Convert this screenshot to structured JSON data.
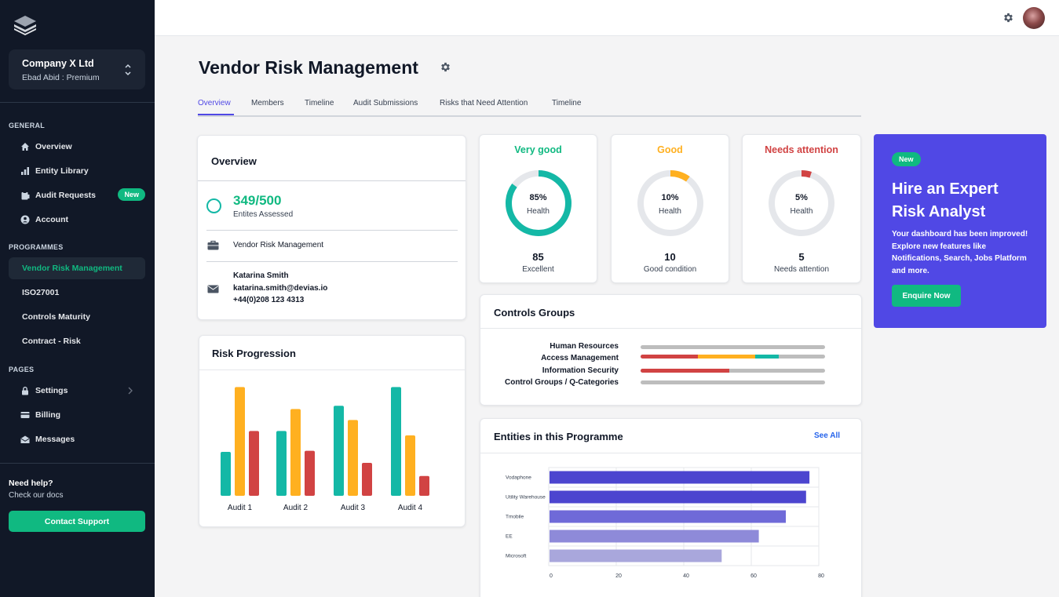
{
  "sidebar": {
    "company_name": "Company X Ltd",
    "company_sub": "Ebad Abid : Premium",
    "general_title": "GENERAL",
    "general_items": [
      {
        "label": "Overview",
        "icon": "home-icon"
      },
      {
        "label": "Entity Library",
        "icon": "bar-chart-icon"
      },
      {
        "label": "Audit Requests",
        "icon": "clipboard-icon",
        "badge": "New"
      },
      {
        "label": "Account",
        "icon": "user-circle-icon"
      }
    ],
    "programmes_title": "PROGRAMMES",
    "programmes_items": [
      {
        "label": "Vendor Risk Management",
        "active": true
      },
      {
        "label": "ISO27001"
      },
      {
        "label": "Controls Maturity"
      },
      {
        "label": "Contract - Risk"
      }
    ],
    "pages_title": "PAGES",
    "pages_items": [
      {
        "label": "Settings",
        "icon": "lock-icon"
      },
      {
        "label": "Billing",
        "icon": "credit-card-icon"
      },
      {
        "label": "Messages",
        "icon": "mail-open-icon"
      }
    ],
    "help_title": "Need help?",
    "help_sub": "Check our docs",
    "support_label": "Contact Support"
  },
  "header": {
    "title": "Vendor Risk Management",
    "tabs": [
      "Overview",
      "Members",
      "Timeline",
      "Audit Submissions",
      "Risks that Need Attention",
      "Timeline"
    ]
  },
  "overview": {
    "title": "Overview",
    "stat": "349/500",
    "stat_label": "Entites Assessed",
    "programme": "Vendor Risk Management",
    "contact_name": "Katarina Smith",
    "contact_email": "katarina.smith@devias.io",
    "contact_phone": "+44(0)208 123 4313"
  },
  "health_cards": [
    {
      "title": "Very good",
      "percent": "85%",
      "value": 85,
      "label": "Health",
      "count": "85",
      "desc": "Excellent",
      "color": "#14b8a6"
    },
    {
      "title": "Good",
      "percent": "10%",
      "value": 10,
      "label": "Health",
      "count": "10",
      "desc": "Good condition",
      "color": "#ffb020"
    },
    {
      "title": "Needs attention",
      "percent": "5%",
      "value": 5,
      "label": "Health",
      "count": "5",
      "desc": "Needs attention",
      "color": "#d14343"
    }
  ],
  "colors": {
    "primary": "#5048e5",
    "success": "#10b981",
    "teal": "#14b8a6",
    "warning": "#ffb020",
    "danger": "#d14343"
  },
  "controls_groups": {
    "title": "Controls Groups",
    "rows": [
      {
        "label": "Human Resources",
        "segments": []
      },
      {
        "label": "Access Management",
        "segments": [
          {
            "color": "#d14343",
            "value": 0.31
          },
          {
            "color": "#ffb020",
            "value": 0.31
          },
          {
            "color": "#14b8a6",
            "value": 0.13
          }
        ]
      },
      {
        "label": "Information Security",
        "segments": [
          {
            "color": "#d14343",
            "value": 0.48
          }
        ]
      },
      {
        "label": "Control Groups / Q-Categories",
        "segments": []
      }
    ]
  },
  "promo": {
    "badge": "New",
    "title": "Hire an Expert Risk Analyst",
    "text": "Your dashboard has been improved! Explore new features like Notifications, Search, Jobs Platform and more.",
    "button": "Enquire Now"
  },
  "risk_progression": {
    "title": "Risk Progression"
  },
  "entities": {
    "title": "Entities in this Programme",
    "see_all": "See All"
  },
  "chart_data": [
    {
      "type": "bar",
      "title": "Risk Progression",
      "categories": [
        "Audit 1",
        "Audit 2",
        "Audit 3",
        "Audit 4"
      ],
      "series": [
        {
          "values": [
            40,
            59,
            82,
            99
          ],
          "color": "#14b8a6"
        },
        {
          "values": [
            99,
            79,
            69,
            55
          ],
          "color": "#ffb020"
        },
        {
          "values": [
            59,
            41,
            30,
            18
          ],
          "color": "#d14343"
        }
      ]
    },
    {
      "type": "bar",
      "orientation": "horizontal",
      "title": "Entities in this Programme",
      "categories": [
        "Vodaphone",
        "Utility Warehouse",
        "Tmobile",
        "EE",
        "Microsoft"
      ],
      "values": [
        77,
        76,
        70,
        62,
        51
      ],
      "colors": [
        "#4c45cf",
        "#4c45cf",
        "#6f6ad8",
        "#8e8ad9",
        "#a9a7dc"
      ],
      "xlim": [
        0,
        80
      ],
      "xticks": [
        "0",
        "20",
        "40",
        "60",
        "80"
      ]
    }
  ]
}
